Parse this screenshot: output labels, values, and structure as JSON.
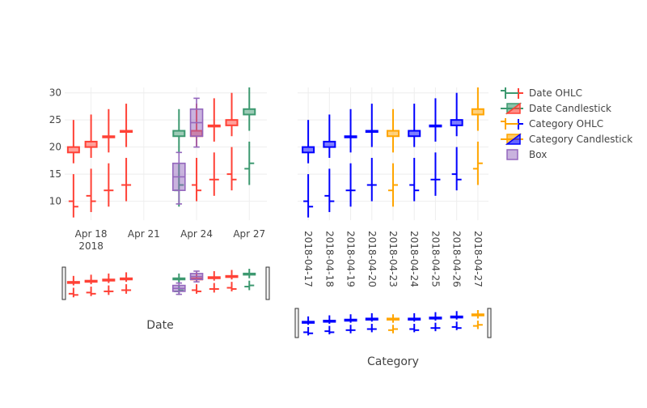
{
  "chart_data": {
    "type": "ohlc",
    "colors": {
      "date_increasing": "#3D9970",
      "date_decreasing": "#FF4136",
      "category_increasing": "#FFA500",
      "category_decreasing": "#0000FF",
      "box": "#9467BD",
      "grid": "#EEEEEE",
      "tick_text": "#444444"
    },
    "legend": {
      "placement": "top-right",
      "items": [
        {
          "label": "Date OHLC",
          "kind": "ohlc",
          "inc": "#3D9970",
          "dec": "#FF4136"
        },
        {
          "label": "Date Candlestick",
          "kind": "candle",
          "inc": "#3D9970",
          "dec": "#FF4136"
        },
        {
          "label": "Category OHLC",
          "kind": "ohlc",
          "inc": "#FFA500",
          "dec": "#0000FF"
        },
        {
          "label": "Category Candlestick",
          "kind": "candle",
          "inc": "#FFA500",
          "dec": "#0000FF"
        },
        {
          "label": "Box",
          "kind": "box",
          "inc": "#9467BD",
          "dec": "#9467BD"
        }
      ]
    },
    "axes": {
      "y": {
        "range": [
          6.5,
          31
        ],
        "ticks": [
          10,
          15,
          20,
          25,
          30
        ],
        "grid": true
      },
      "x_date": {
        "title": "Date",
        "range": [
          "2018-04-16 12:00",
          "2018-04-28 00:00"
        ],
        "ticks": [
          {
            "value": "2018-04-18",
            "label": "Apr 18",
            "sublabel": "2018"
          },
          {
            "value": "2018-04-21",
            "label": "Apr 21",
            "sublabel": ""
          },
          {
            "value": "2018-04-24",
            "label": "Apr 24",
            "sublabel": ""
          },
          {
            "value": "2018-04-27",
            "label": "Apr 27",
            "sublabel": ""
          }
        ],
        "grid": true,
        "rangeslider": true
      },
      "x_category": {
        "title": "Category",
        "categories": [
          "2018-04-17",
          "2018-04-18",
          "2018-04-19",
          "2018-04-20",
          "2018-04-23",
          "2018-04-24",
          "2018-04-25",
          "2018-04-26",
          "2018-04-27"
        ],
        "grid": true,
        "rangeslider": true
      }
    },
    "series": [
      {
        "name": "Date OHLC",
        "type": "ohlc",
        "xaxis": "date",
        "x": [
          "2018-04-17",
          "2018-04-18",
          "2018-04-19",
          "2018-04-20",
          "2018-04-23",
          "2018-04-24",
          "2018-04-25",
          "2018-04-26",
          "2018-04-27"
        ],
        "open": [
          10,
          11,
          12,
          13,
          12,
          13,
          14,
          15,
          16
        ],
        "high": [
          15,
          16,
          17,
          18,
          17,
          18,
          19,
          20,
          21
        ],
        "low": [
          7,
          8,
          9,
          10,
          9,
          10,
          11,
          12,
          13
        ],
        "close": [
          9,
          10,
          12,
          13,
          13,
          12,
          14,
          14,
          17
        ]
      },
      {
        "name": "Date Candlestick",
        "type": "candlestick",
        "xaxis": "date",
        "x": [
          "2018-04-17",
          "2018-04-18",
          "2018-04-19",
          "2018-04-20",
          "2018-04-23",
          "2018-04-24",
          "2018-04-25",
          "2018-04-26",
          "2018-04-27"
        ],
        "open": [
          20,
          21,
          22,
          23,
          22,
          23,
          24,
          25,
          26
        ],
        "high": [
          25,
          26,
          27,
          28,
          27,
          28,
          29,
          30,
          31
        ],
        "low": [
          17,
          18,
          19,
          20,
          19,
          20,
          21,
          22,
          23
        ],
        "close": [
          19,
          20,
          22,
          23,
          23,
          22,
          24,
          24,
          27
        ]
      },
      {
        "name": "Category OHLC",
        "type": "ohlc",
        "xaxis": "category",
        "x": [
          "2018-04-17",
          "2018-04-18",
          "2018-04-19",
          "2018-04-20",
          "2018-04-23",
          "2018-04-24",
          "2018-04-25",
          "2018-04-26",
          "2018-04-27"
        ],
        "open": [
          10,
          11,
          12,
          13,
          12,
          13,
          14,
          15,
          16
        ],
        "high": [
          15,
          16,
          17,
          18,
          17,
          18,
          19,
          20,
          21
        ],
        "low": [
          7,
          8,
          9,
          10,
          9,
          10,
          11,
          12,
          13
        ],
        "close": [
          9,
          10,
          12,
          13,
          13,
          12,
          14,
          14,
          17
        ]
      },
      {
        "name": "Category Candlestick",
        "type": "candlestick",
        "xaxis": "category",
        "x": [
          "2018-04-17",
          "2018-04-18",
          "2018-04-19",
          "2018-04-20",
          "2018-04-23",
          "2018-04-24",
          "2018-04-25",
          "2018-04-26",
          "2018-04-27"
        ],
        "open": [
          20,
          21,
          22,
          23,
          22,
          23,
          24,
          25,
          26
        ],
        "high": [
          25,
          26,
          27,
          28,
          27,
          28,
          29,
          30,
          31
        ],
        "low": [
          17,
          18,
          19,
          20,
          19,
          20,
          21,
          22,
          23
        ],
        "close": [
          19,
          20,
          22,
          23,
          23,
          22,
          24,
          24,
          27
        ]
      },
      {
        "name": "Box",
        "type": "box",
        "xaxis": "date",
        "boxes": [
          {
            "x": "2018-04-23",
            "min": 9.5,
            "q1": 12,
            "median": 14.5,
            "q3": 17,
            "max": 19
          },
          {
            "x": "2018-04-24",
            "min": 20,
            "q1": 22,
            "median": 24.5,
            "q3": 27,
            "max": 29
          }
        ]
      }
    ]
  }
}
